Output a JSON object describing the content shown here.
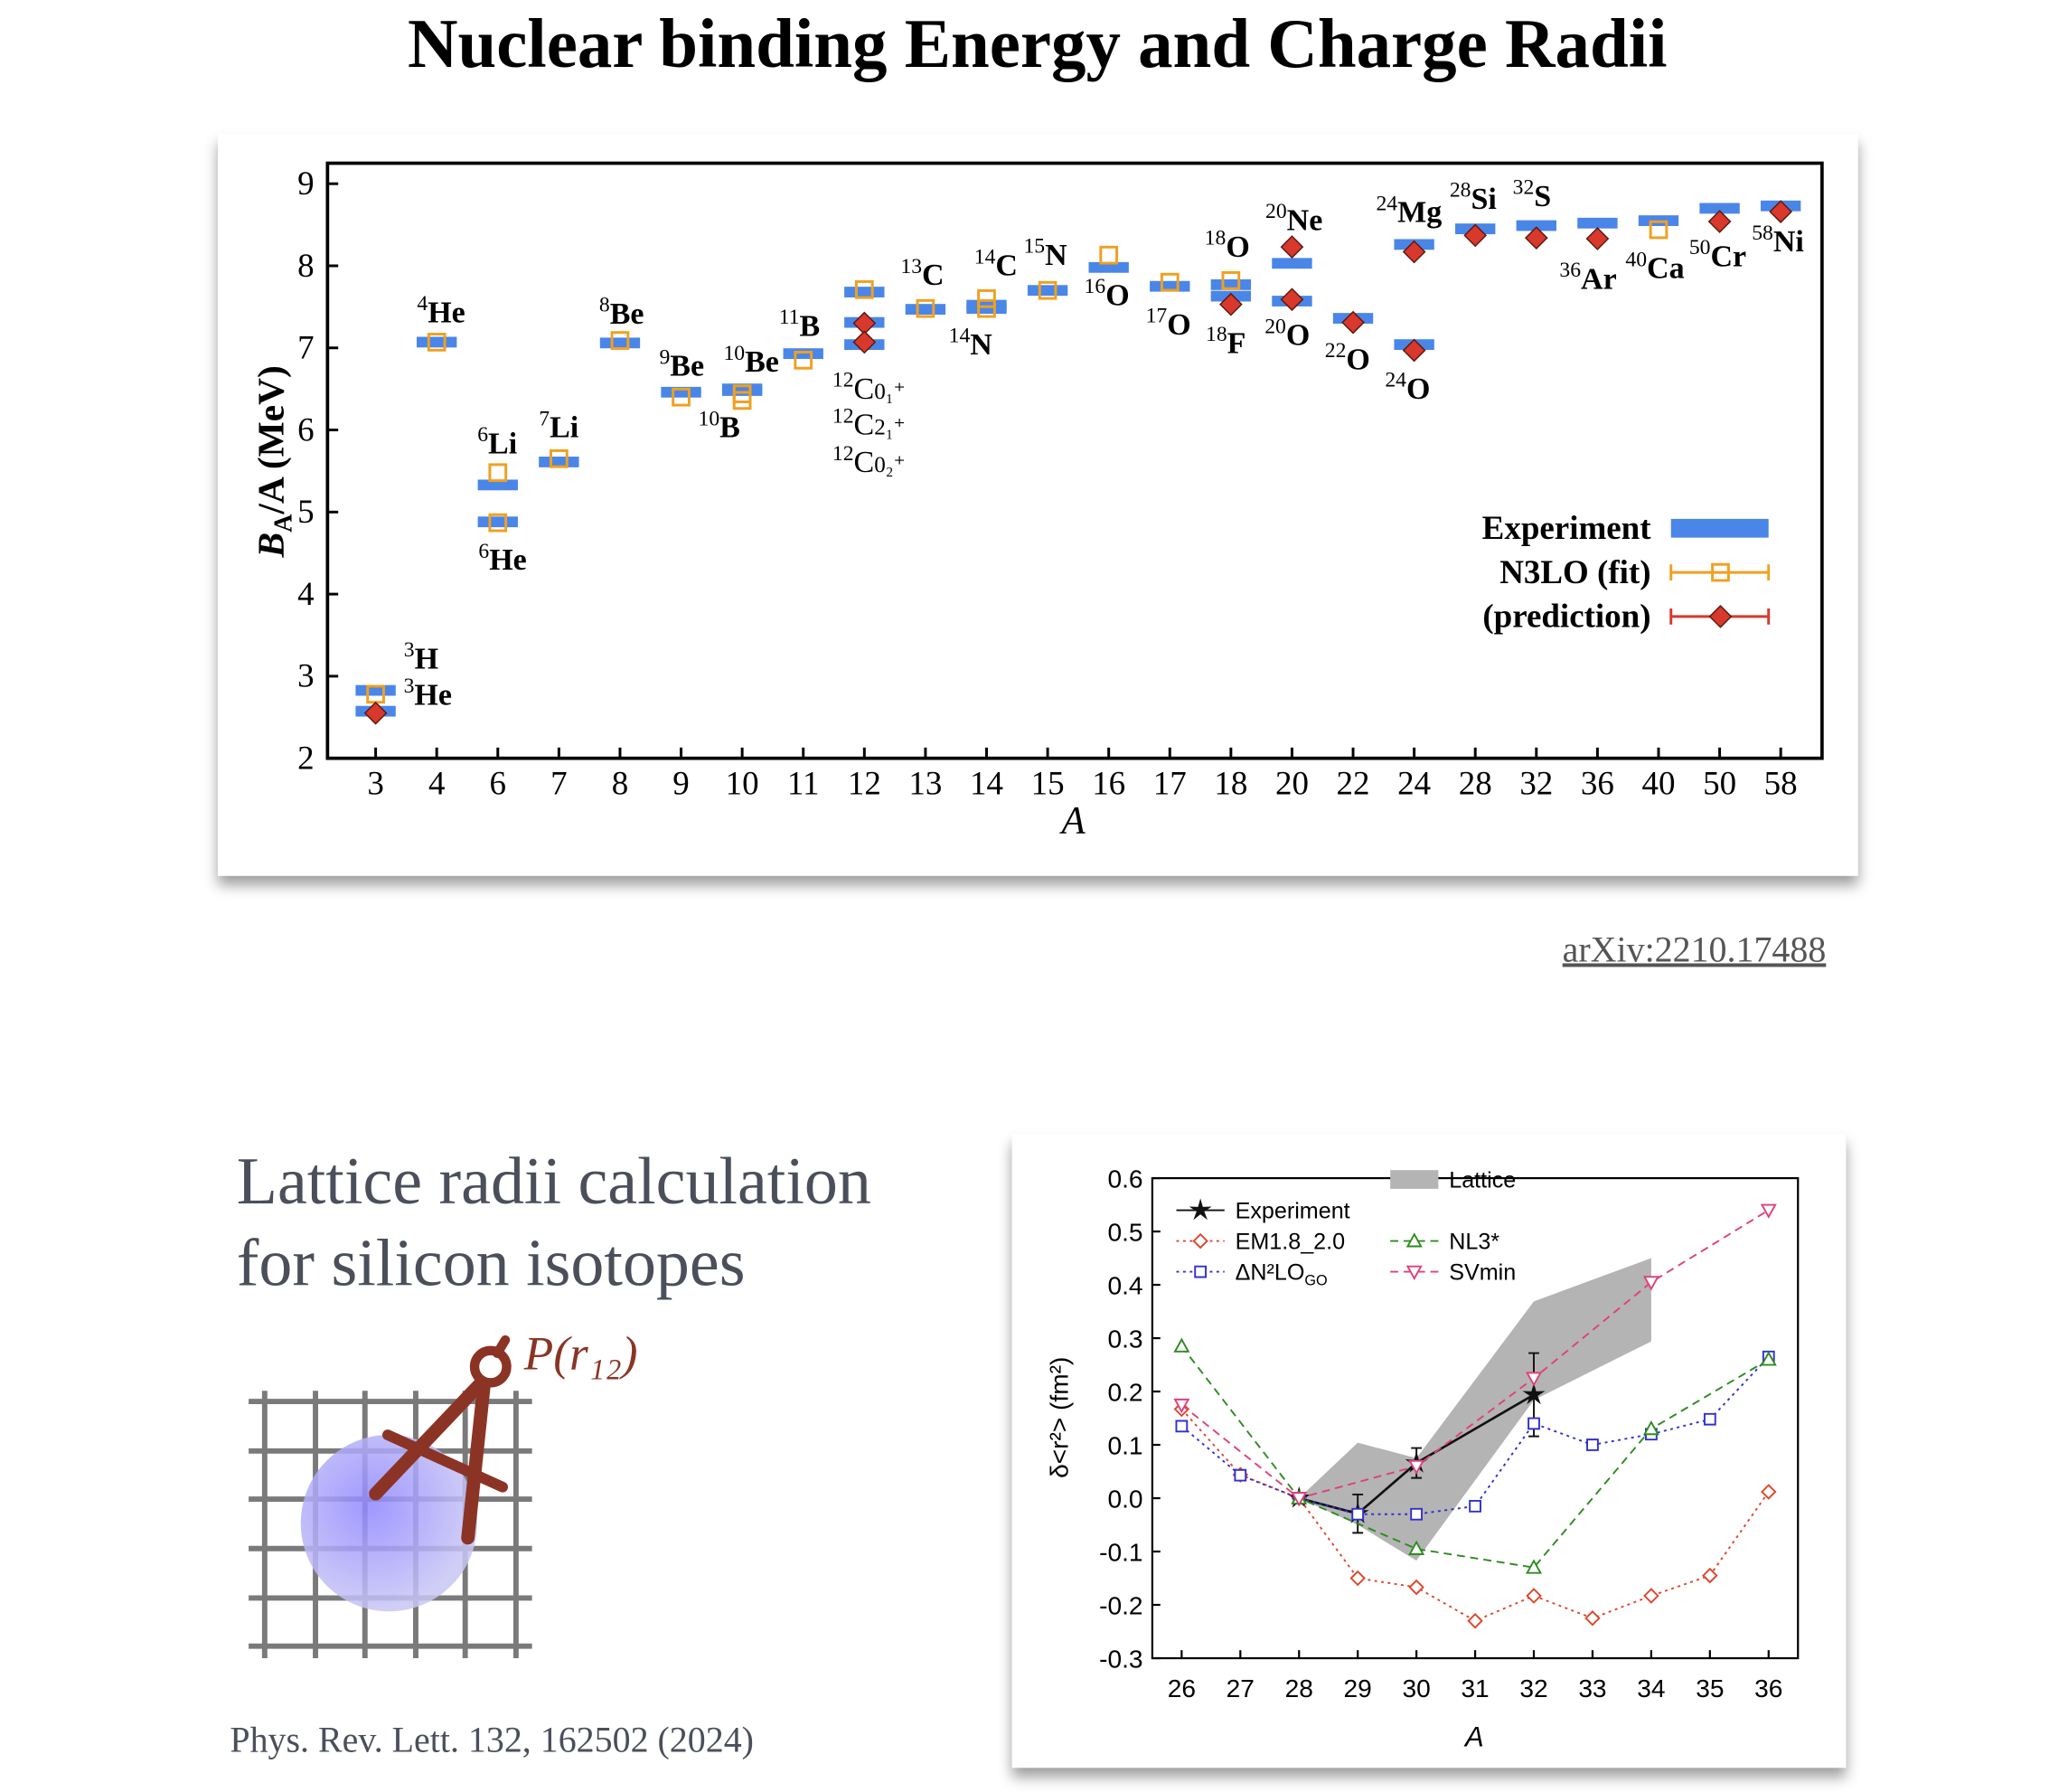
{
  "title": "Nuclear binding Energy and Charge Radii",
  "citation_top": "arXiv:2210.17488",
  "lattice": {
    "heading": [
      "Lattice radii calculation",
      "for silicon isotopes"
    ],
    "formula": "P(r₁₂)",
    "citation": "Phys. Rev. Lett. 132, 162502 (2024)"
  },
  "chart_data": [
    {
      "type": "scatter",
      "categories": [
        "3",
        "4",
        "6",
        "7",
        "8",
        "9",
        "10",
        "11",
        "12",
        "13",
        "14",
        "15",
        "16",
        "17",
        "18",
        "20",
        "22",
        "24",
        "28",
        "32",
        "36",
        "40",
        "50",
        "58"
      ],
      "xlabel": "A",
      "ylabel": {
        "symbol": "B",
        "subscript": "A",
        "text": "/A (MeV)"
      },
      "ylim": [
        2,
        9.25
      ],
      "yticks": [
        2,
        3,
        4,
        5,
        6,
        7,
        8,
        9
      ],
      "legend": "lower right",
      "series": [
        {
          "name": "Experiment",
          "color": "#4a86e8",
          "marker": "bar",
          "x": [
            "3",
            "3",
            "4",
            "6",
            "6",
            "7",
            "8",
            "9",
            "10",
            "10",
            "11",
            "12",
            "12",
            "12",
            "13",
            "14",
            "14",
            "15",
            "16",
            "17",
            "18",
            "18",
            "20",
            "20",
            "22",
            "24",
            "24",
            "28",
            "32",
            "36",
            "40",
            "50",
            "58"
          ],
          "values": [
            2.827,
            2.573,
            7.07,
            5.33,
            4.88,
            5.61,
            7.06,
            6.46,
            6.5,
            6.48,
            6.93,
            7.68,
            7.31,
            7.04,
            7.47,
            7.52,
            7.48,
            7.7,
            7.98,
            7.75,
            7.77,
            7.63,
            8.03,
            7.57,
            7.36,
            8.26,
            7.04,
            8.45,
            8.49,
            8.52,
            8.55,
            8.7,
            8.73
          ]
        },
        {
          "name": "N3LO (fit)",
          "color": "#f0a020",
          "marker": "square",
          "x": [
            "3",
            "4",
            "6",
            "6",
            "7",
            "8",
            "9",
            "10",
            "10",
            "11",
            "12",
            "13",
            "14",
            "14",
            "15",
            "16",
            "17",
            "18",
            "40"
          ],
          "values": [
            2.78,
            7.07,
            5.48,
            4.87,
            5.65,
            7.09,
            6.4,
            6.44,
            6.36,
            6.85,
            7.71,
            7.48,
            7.6,
            7.48,
            7.7,
            8.13,
            7.8,
            7.82,
            8.44
          ]
        },
        {
          "name": "(prediction)",
          "color": "#d9382c",
          "marker": "diamond",
          "x": [
            "3",
            "12",
            "12",
            "18",
            "20",
            "20",
            "22",
            "24",
            "24",
            "28",
            "32",
            "36",
            "50",
            "58"
          ],
          "values": [
            2.55,
            7.3,
            7.07,
            7.53,
            8.23,
            7.59,
            7.31,
            8.17,
            6.97,
            8.37,
            8.34,
            8.33,
            8.54,
            8.66
          ]
        }
      ],
      "nucleus_labels": [
        {
          "mass": "3",
          "element": "H"
        },
        {
          "mass": "3",
          "element": "He"
        },
        {
          "mass": "4",
          "element": "He"
        },
        {
          "mass": "6",
          "element": "Li"
        },
        {
          "mass": "6",
          "element": "He"
        },
        {
          "mass": "7",
          "element": "Li"
        },
        {
          "mass": "8",
          "element": "Be"
        },
        {
          "mass": "9",
          "element": "Be"
        },
        {
          "mass": "10",
          "element": "Be"
        },
        {
          "mass": "10",
          "element": "B"
        },
        {
          "mass": "11",
          "element": "B"
        },
        {
          "mass": "12",
          "element": "C",
          "state": "0₁⁺"
        },
        {
          "mass": "12",
          "element": "C",
          "state": "2₁⁺"
        },
        {
          "mass": "12",
          "element": "C",
          "state": "0₂⁺"
        },
        {
          "mass": "13",
          "element": "C"
        },
        {
          "mass": "14",
          "element": "C"
        },
        {
          "mass": "14",
          "element": "N"
        },
        {
          "mass": "15",
          "element": "N"
        },
        {
          "mass": "16",
          "element": "O"
        },
        {
          "mass": "17",
          "element": "O"
        },
        {
          "mass": "18",
          "element": "O"
        },
        {
          "mass": "18",
          "element": "F"
        },
        {
          "mass": "20",
          "element": "Ne"
        },
        {
          "mass": "20",
          "element": "O"
        },
        {
          "mass": "22",
          "element": "O"
        },
        {
          "mass": "24",
          "element": "Mg"
        },
        {
          "mass": "24",
          "element": "O"
        },
        {
          "mass": "28",
          "element": "Si"
        },
        {
          "mass": "32",
          "element": "S"
        },
        {
          "mass": "36",
          "element": "Ar"
        },
        {
          "mass": "40",
          "element": "Ca"
        },
        {
          "mass": "50",
          "element": "Cr"
        },
        {
          "mass": "58",
          "element": "Ni"
        }
      ]
    },
    {
      "type": "line",
      "xlabel": "A",
      "ylabel": "δ<r²> (fm²)",
      "xlim": [
        25.5,
        36.5
      ],
      "xticks": [
        26,
        27,
        28,
        29,
        30,
        31,
        32,
        33,
        34,
        35,
        36
      ],
      "ylim": [
        -0.3,
        0.6
      ],
      "yticks": [
        -0.3,
        -0.2,
        -0.1,
        {
          "value": 0,
          "label": "0.0"
        },
        0.1,
        0.2,
        0.3,
        0.4,
        0.5,
        0.6
      ],
      "legend": "upper left",
      "bands": [
        {
          "name": "Lattice",
          "color": "#b4b4b4",
          "x": [
            28,
            29,
            30,
            32,
            34
          ],
          "lower": [
            0,
            -0.05,
            -0.117,
            0.184,
            0.294
          ],
          "upper": [
            0,
            0.104,
            0.075,
            0.369,
            0.45
          ]
        }
      ],
      "series": [
        {
          "name": "Experiment",
          "color": "#111111",
          "marker": "star",
          "dash": "solid",
          "x": [
            28,
            29,
            30,
            32
          ],
          "values": [
            0,
            -0.029,
            0.066,
            0.194
          ],
          "errors": [
            0,
            0.036,
            0.028,
            0.078
          ]
        },
        {
          "name": "EM1.8_2.0",
          "color": "#e0452a",
          "marker": "diamond",
          "dash": "dotted",
          "x": [
            26,
            27,
            28,
            29,
            30,
            31,
            32,
            33,
            34,
            35,
            36
          ],
          "values": [
            0.167,
            0.044,
            0,
            -0.15,
            -0.167,
            -0.23,
            -0.183,
            -0.225,
            -0.183,
            -0.145,
            0.012
          ]
        },
        {
          "name": "ΔN²LO",
          "name_subscript": "GO",
          "color": "#3030d0",
          "marker": "square",
          "dash": "dotted",
          "x": [
            26,
            27,
            28,
            29,
            30,
            31,
            32,
            33,
            34,
            35,
            36
          ],
          "values": [
            0.135,
            0.043,
            0,
            -0.03,
            -0.03,
            -0.015,
            0.14,
            0.1,
            0.12,
            0.148,
            0.265
          ]
        },
        {
          "name": "NL3*",
          "color": "#2e8b20",
          "marker": "triangle-up",
          "dash": "dashed",
          "x": [
            26,
            28,
            30,
            32,
            34,
            36
          ],
          "values": [
            0.285,
            0,
            -0.095,
            -0.13,
            0.13,
            0.26
          ]
        },
        {
          "name": "SVmin",
          "color": "#e0407a",
          "marker": "triangle-down",
          "dash": "dashed",
          "x": [
            26,
            28,
            30,
            32,
            34,
            36
          ],
          "values": [
            0.175,
            0,
            0.06,
            0.225,
            0.405,
            0.54
          ]
        }
      ]
    }
  ]
}
